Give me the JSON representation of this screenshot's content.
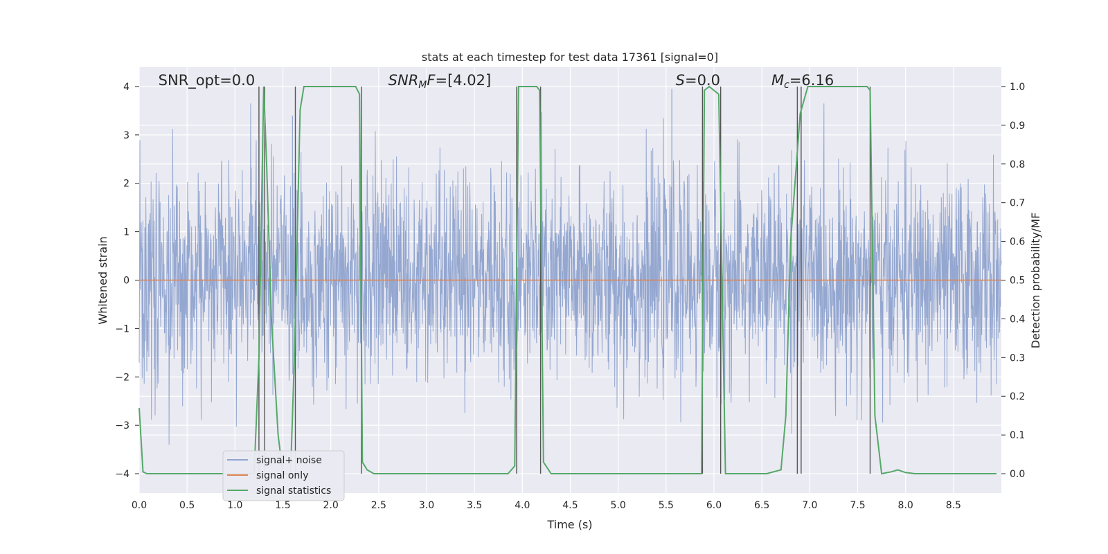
{
  "chart_data": {
    "type": "line",
    "title": "stats at each timestep for test data 17361 [signal=0]",
    "xlabel": "Time (s)",
    "ylabel": "Whitened strain",
    "y2label": "Detection probability/MF",
    "xlim": [
      0.0,
      9.0
    ],
    "ylim": [
      -4.4,
      4.4
    ],
    "y2lim": [
      -0.05,
      1.05
    ],
    "x_ticks": [
      "0.0",
      "0.5",
      "1.0",
      "1.5",
      "2.0",
      "2.5",
      "3.0",
      "3.5",
      "4.0",
      "4.5",
      "5.0",
      "5.5",
      "6.0",
      "6.5",
      "7.0",
      "7.5",
      "8.0",
      "8.5"
    ],
    "x_tick_values": [
      0.0,
      0.5,
      1.0,
      1.5,
      2.0,
      2.5,
      3.0,
      3.5,
      4.0,
      4.5,
      5.0,
      5.5,
      6.0,
      6.5,
      7.0,
      7.5,
      8.0,
      8.5
    ],
    "y_ticks": [
      "−4",
      "−3",
      "−2",
      "−1",
      "0",
      "1",
      "2",
      "3",
      "4"
    ],
    "y_tick_values": [
      -4,
      -3,
      -2,
      -1,
      0,
      1,
      2,
      3,
      4
    ],
    "y2_ticks": [
      "0.0",
      "0.1",
      "0.2",
      "0.3",
      "0.4",
      "0.5",
      "0.6",
      "0.7",
      "0.8",
      "0.9",
      "1.0"
    ],
    "y2_tick_values": [
      0.0,
      0.1,
      0.2,
      0.3,
      0.4,
      0.5,
      0.6,
      0.7,
      0.8,
      0.9,
      1.0
    ],
    "grid": true,
    "legend_placement": "lower-left",
    "annotations": [
      {
        "text": "SNR_opt=0.0",
        "x": 0.2
      },
      {
        "html": "<tspan font-style='italic'>SNR</tspan><tspan font-style='italic' font-size='14' dy='4'>M</tspan><tspan font-style='italic' dy='-4'>F</tspan>=[4.02]",
        "text": "SNR_MF=[4.02]",
        "x": 2.6
      },
      {
        "html": "<tspan font-style='italic'>S</tspan>=0.0",
        "text": "S=0.0",
        "x": 5.6
      },
      {
        "html": "<tspan font-style='italic'>M</tspan><tspan font-style='italic' font-size='14' dy='4'>c</tspan><tspan dy='-4'>=6.16</tspan>",
        "text": "M_c=6.16",
        "x": 6.6
      }
    ],
    "series": [
      {
        "name": "signal+ noise",
        "color": "#8fa3cd",
        "kind": "noise",
        "amplitude_std": 1.0,
        "spike_peaks": [
          [
            5.56,
            3.95
          ],
          [
            2.3,
            3.8
          ],
          [
            5.88,
            3.1
          ],
          [
            1.6,
            3.4
          ]
        ]
      },
      {
        "name": "signal only",
        "color": "#dd8452",
        "kind": "constant",
        "value": 0.0
      },
      {
        "name": "signal statistics",
        "color": "#55a868",
        "kind": "step",
        "x": [
          0.0,
          0.04,
          0.08,
          0.12,
          1.2,
          1.25,
          1.3,
          1.33,
          1.38,
          1.45,
          1.5,
          1.58,
          1.62,
          1.68,
          1.72,
          1.77,
          2.26,
          2.3,
          2.33,
          2.38,
          2.45,
          2.5,
          3.85,
          3.92,
          3.96,
          4.0,
          4.15,
          4.18,
          4.22,
          4.3,
          5.87,
          5.9,
          5.95,
          6.05,
          6.12,
          6.55,
          6.7,
          6.75,
          6.8,
          6.9,
          6.98,
          7.03,
          7.6,
          7.63,
          7.68,
          7.75,
          7.85,
          7.92,
          8.0,
          8.1,
          8.95
        ],
        "y": [
          0.17,
          0.005,
          0.0,
          0.0,
          0.0,
          0.3,
          1.0,
          0.8,
          0.4,
          0.1,
          0.0,
          0.0,
          0.3,
          0.94,
          1.0,
          1.0,
          1.0,
          0.98,
          0.03,
          0.01,
          0.0,
          0.0,
          0.0,
          0.02,
          1.0,
          1.0,
          1.0,
          0.99,
          0.03,
          0.0,
          0.0,
          0.99,
          1.0,
          0.98,
          0.0,
          0.0,
          0.01,
          0.15,
          0.6,
          0.93,
          1.0,
          1.0,
          1.0,
          0.99,
          0.15,
          0.0,
          0.005,
          0.01,
          0.003,
          0.0,
          0.0
        ]
      },
      {
        "name": "",
        "color": "#555555",
        "kind": "vlines",
        "x": [
          1.25,
          1.31,
          1.63,
          2.32,
          3.94,
          4.19,
          5.88,
          6.07,
          6.87,
          6.91,
          7.63
        ]
      }
    ]
  }
}
